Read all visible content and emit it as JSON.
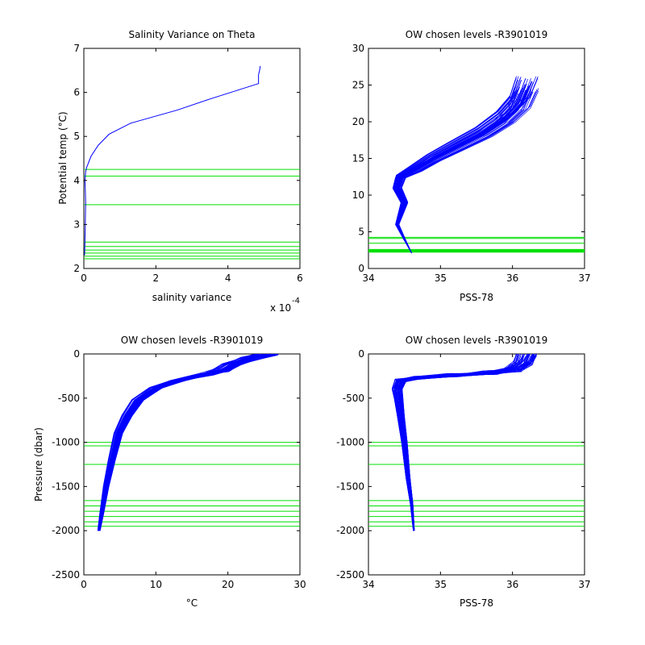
{
  "colors": {
    "profile": "#0000ff",
    "chosen_level": "#00e000",
    "axis": "#000000",
    "background": "#ffffff"
  },
  "chart_data": [
    {
      "type": "line",
      "title": "Salinity Variance on Theta",
      "xlabel": "salinity variance",
      "ylabel": "Potential temp (°C)",
      "x_exponent_label": "x 10",
      "x_exponent": "-4",
      "xlim": [
        0,
        6
      ],
      "ylim": [
        2,
        7
      ],
      "xticks": [
        "0",
        "2",
        "4",
        "6"
      ],
      "yticks": [
        "2",
        "3",
        "4",
        "5",
        "6",
        "7"
      ],
      "series": [
        {
          "values_x": [
            0.02,
            0.03,
            0.04,
            0.05,
            0.04,
            0.03,
            0.05,
            0.08,
            0.2,
            0.4,
            0.7,
            1.3,
            2.6,
            3.5,
            4.85,
            4.85,
            4.88,
            4.9
          ],
          "values_y": [
            2.3,
            2.6,
            3.0,
            3.5,
            3.8,
            4.0,
            4.2,
            4.3,
            4.55,
            4.8,
            5.05,
            5.3,
            5.6,
            5.85,
            6.2,
            6.4,
            6.5,
            6.6
          ]
        }
      ],
      "chosen_levels_y": [
        4.25,
        4.1,
        3.45,
        2.6,
        2.5,
        2.42,
        2.35,
        2.28,
        2.22
      ]
    },
    {
      "type": "line",
      "title": "OW chosen levels -R3901019",
      "xlabel": "PSS-78",
      "ylabel": "",
      "xlim": [
        34,
        37
      ],
      "ylim": [
        0,
        30
      ],
      "xticks": [
        "34",
        "35",
        "36",
        "37"
      ],
      "yticks": [
        "0",
        "5",
        "10",
        "15",
        "20",
        "25",
        "30"
      ],
      "profile": {
        "s": [
          34.6,
          34.5,
          34.4,
          34.45,
          34.5,
          34.4,
          34.45,
          34.55,
          34.65,
          34.9,
          35.2,
          35.6,
          35.9,
          36.1,
          36.2
        ],
        "t": [
          2.1,
          4.0,
          6.0,
          7.5,
          9.0,
          11.0,
          12.5,
          13.0,
          13.5,
          15.0,
          16.5,
          18.5,
          20.5,
          22.5,
          25.0
        ]
      },
      "ensemble_spread": 0.22,
      "chosen_levels_y": [
        4.25,
        4.1,
        3.45,
        2.6,
        2.5,
        2.42,
        2.35,
        2.28,
        2.22
      ]
    },
    {
      "type": "line",
      "title": "OW chosen levels -R3901019",
      "xlabel": "°C",
      "ylabel": "Pressure (dbar)",
      "xlim": [
        0,
        30
      ],
      "ylim": [
        -2500,
        0
      ],
      "xticks": [
        "0",
        "10",
        "20",
        "30"
      ],
      "yticks": [
        "-2500",
        "-2000",
        "-1500",
        "-1000",
        "-500",
        "0"
      ],
      "profile": {
        "x": [
          2.1,
          2.5,
          3.1,
          3.9,
          4.8,
          6.0,
          7.5,
          10.0,
          13.0,
          17.0,
          19.0,
          20.5,
          23.0,
          25.5
        ],
        "p": [
          -2000,
          -1800,
          -1500,
          -1200,
          -900,
          -700,
          -520,
          -380,
          -300,
          -230,
          -190,
          -120,
          -50,
          0
        ]
      },
      "ensemble_spread": 1.2,
      "chosen_levels_p": [
        -1000,
        -1040,
        -1250,
        -1660,
        -1720,
        -1780,
        -1840,
        -1900,
        -1950
      ]
    },
    {
      "type": "line",
      "title": "OW chosen levels -R3901019",
      "xlabel": "PSS-78",
      "ylabel": "",
      "xlim": [
        34,
        37
      ],
      "ylim": [
        -2500,
        0
      ],
      "xticks": [
        "34",
        "35",
        "36",
        "37"
      ],
      "yticks": [
        "-2500",
        "-2000",
        "-1500",
        "-1000",
        "-500",
        "0"
      ],
      "profile": {
        "s": [
          34.63,
          34.6,
          34.55,
          34.5,
          34.45,
          34.42,
          34.4,
          34.45,
          34.7,
          35.2,
          35.7,
          36.0,
          36.15,
          36.2
        ],
        "p": [
          -2000,
          -1700,
          -1400,
          -1000,
          -700,
          -500,
          -400,
          -300,
          -270,
          -240,
          -210,
          -180,
          -100,
          0
        ]
      },
      "ensemble_spread": 0.08,
      "chosen_levels_p": [
        -1000,
        -1040,
        -1250,
        -1660,
        -1720,
        -1780,
        -1840,
        -1900,
        -1950
      ]
    }
  ]
}
